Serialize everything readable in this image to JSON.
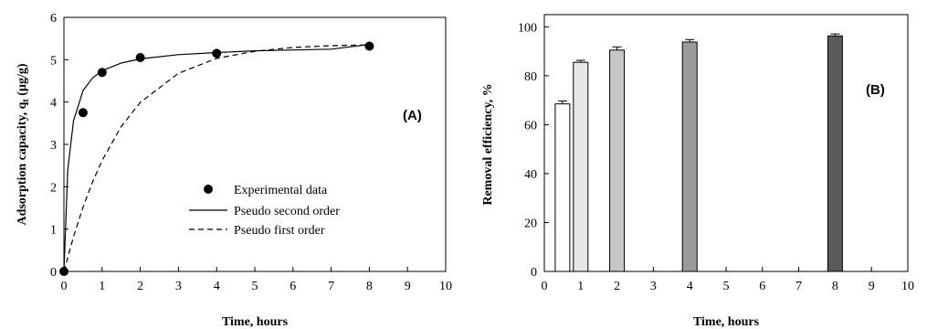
{
  "chart_data": [
    {
      "type": "line",
      "panel_label": "(A)",
      "xlabel": "Time, hours",
      "ylabel": "Adsorption capacity, q",
      "ylabel_sub": "t",
      "ylabel_unit": " (µg/g)",
      "xlim": [
        0,
        10
      ],
      "ylim": [
        0,
        6
      ],
      "xticks": [
        "0",
        "1",
        "2",
        "3",
        "4",
        "5",
        "6",
        "7",
        "8",
        "9",
        "10"
      ],
      "yticks": [
        "0",
        "1",
        "2",
        "3",
        "4",
        "5",
        "6"
      ],
      "legend_position": "center-right",
      "series": [
        {
          "name": "Experimental data",
          "style": "markers",
          "x": [
            0,
            0.5,
            1,
            2,
            4,
            8
          ],
          "y": [
            0,
            3.75,
            4.7,
            5.05,
            5.15,
            5.32
          ]
        },
        {
          "name": "Pseudo second order",
          "style": "solid",
          "x": [
            0,
            0.1,
            0.25,
            0.5,
            0.75,
            1,
            1.5,
            2,
            3,
            4,
            5,
            6,
            7,
            8
          ],
          "y": [
            0,
            2.4,
            3.56,
            4.27,
            4.57,
            4.74,
            4.92,
            5.02,
            5.12,
            5.17,
            5.21,
            5.23,
            5.25,
            5.36
          ]
        },
        {
          "name": "Pseudo first order",
          "style": "dashed",
          "x": [
            0,
            0.25,
            0.5,
            0.75,
            1,
            1.5,
            2,
            3,
            4,
            5,
            6,
            7,
            8
          ],
          "y": [
            0,
            0.82,
            1.52,
            2.11,
            2.62,
            3.42,
            3.99,
            4.68,
            5.03,
            5.2,
            5.29,
            5.33,
            5.35
          ]
        }
      ]
    },
    {
      "type": "bar",
      "panel_label": "(B)",
      "xlabel": "Time, hours",
      "ylabel": "Removal efficiency, %",
      "xlim": [
        0,
        10
      ],
      "ylim": [
        0,
        105
      ],
      "xticks": [
        "0",
        "1",
        "2",
        "3",
        "4",
        "5",
        "6",
        "7",
        "8",
        "9",
        "10"
      ],
      "yticks": [
        "0",
        "20",
        "40",
        "60",
        "80",
        "100"
      ],
      "x": [
        0.5,
        1,
        2,
        4,
        8
      ],
      "values": [
        68.5,
        85.5,
        90.5,
        93.8,
        96.3
      ],
      "errors": [
        1.2,
        0.8,
        1.3,
        1.0,
        0.8
      ],
      "colors": [
        "#ffffff",
        "#e6e6e6",
        "#c6c6c6",
        "#9a9a9a",
        "#5a5a5a"
      ]
    }
  ]
}
